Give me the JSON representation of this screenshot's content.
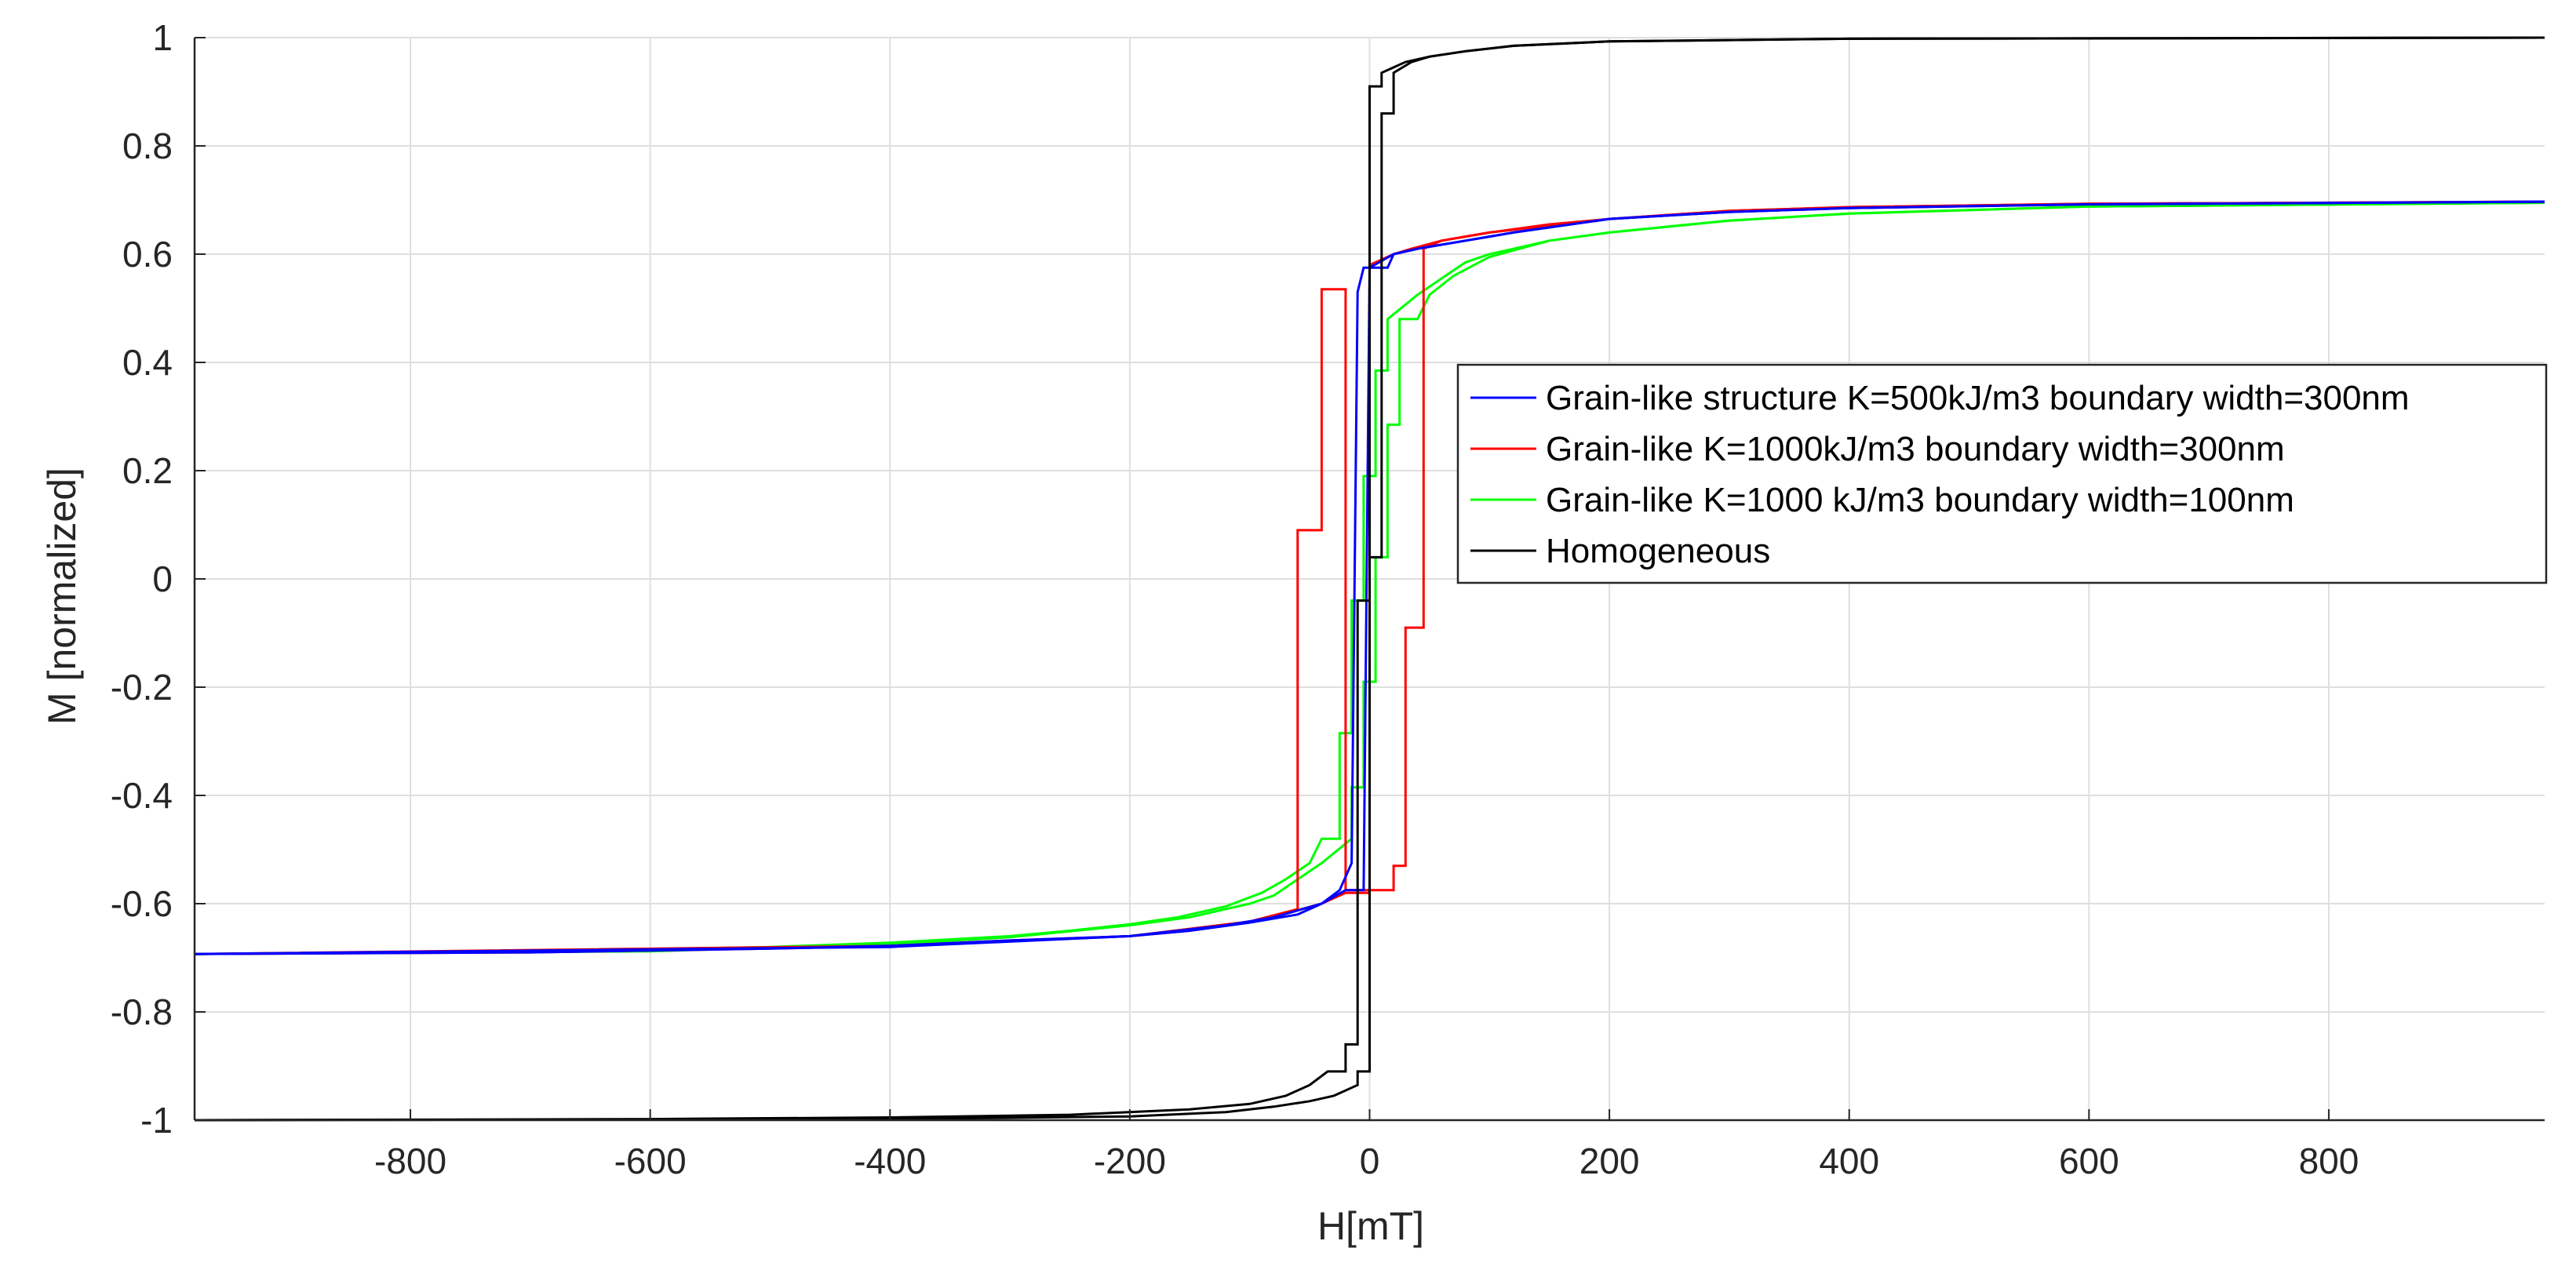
{
  "chart_data": {
    "type": "line",
    "title": "",
    "xlabel": "H[mT]",
    "ylabel": "M [normalized]",
    "xlim": [
      -980,
      980
    ],
    "ylim": [
      -1,
      1
    ],
    "xticks": [
      -800,
      -600,
      -400,
      -200,
      0,
      200,
      400,
      600,
      800
    ],
    "yticks": [
      -1,
      -0.8,
      -0.6,
      -0.4,
      -0.2,
      0,
      0.2,
      0.4,
      0.6,
      0.8,
      1
    ],
    "grid": true,
    "legend_position": "center-right",
    "series": [
      {
        "name": "Grain-like structure K=500kJ/m3 boundary width=300nm",
        "color": "#0000ff",
        "branches": [
          [
            [
              -980,
              -0.693
            ],
            [
              -700,
              -0.69
            ],
            [
              -500,
              -0.683
            ],
            [
              -400,
              -0.678
            ],
            [
              -300,
              -0.668
            ],
            [
              -200,
              -0.66
            ],
            [
              -150,
              -0.65
            ],
            [
              -100,
              -0.635
            ],
            [
              -60,
              -0.62
            ],
            [
              -40,
              -0.6
            ],
            [
              -20,
              -0.575
            ],
            [
              -5,
              -0.575
            ],
            [
              0,
              0.575
            ],
            [
              15,
              0.575
            ],
            [
              20,
              0.6
            ],
            [
              40,
              0.61
            ],
            [
              80,
              0.625
            ],
            [
              120,
              0.64
            ],
            [
              200,
              0.665
            ],
            [
              300,
              0.678
            ],
            [
              400,
              0.685
            ],
            [
              600,
              0.692
            ],
            [
              980,
              0.697
            ]
          ],
          [
            [
              980,
              0.697
            ],
            [
              600,
              0.692
            ],
            [
              400,
              0.685
            ],
            [
              300,
              0.678
            ],
            [
              200,
              0.665
            ],
            [
              120,
              0.64
            ],
            [
              80,
              0.625
            ],
            [
              40,
              0.61
            ],
            [
              20,
              0.6
            ],
            [
              0,
              0.575
            ],
            [
              -5,
              0.575
            ],
            [
              -10,
              0.53
            ],
            [
              -15,
              -0.525
            ],
            [
              -25,
              -0.575
            ],
            [
              -40,
              -0.6
            ],
            [
              -80,
              -0.625
            ],
            [
              -120,
              -0.64
            ],
            [
              -200,
              -0.66
            ],
            [
              -400,
              -0.68
            ],
            [
              -980,
              -0.693
            ]
          ]
        ]
      },
      {
        "name": "Grain-like K=1000kJ/m3 boundary width=300nm",
        "color": "#ff0000",
        "branches": [
          [
            [
              -980,
              -0.693
            ],
            [
              -700,
              -0.69
            ],
            [
              -500,
              -0.683
            ],
            [
              -400,
              -0.678
            ],
            [
              -300,
              -0.668
            ],
            [
              -200,
              -0.66
            ],
            [
              -150,
              -0.65
            ],
            [
              -100,
              -0.633
            ],
            [
              -60,
              -0.612
            ],
            [
              -40,
              -0.6
            ],
            [
              -20,
              -0.58
            ],
            [
              0,
              -0.58
            ],
            [
              0,
              0.58
            ],
            [
              20,
              0.6
            ],
            [
              35,
              0.61
            ],
            [
              60,
              0.625
            ],
            [
              100,
              0.64
            ],
            [
              150,
              0.655
            ],
            [
              200,
              0.665
            ],
            [
              300,
              0.68
            ],
            [
              400,
              0.687
            ],
            [
              600,
              0.693
            ],
            [
              980,
              0.697
            ]
          ],
          [
            [
              980,
              0.697
            ],
            [
              600,
              0.693
            ],
            [
              400,
              0.687
            ],
            [
              300,
              0.68
            ],
            [
              200,
              0.665
            ],
            [
              100,
              0.64
            ],
            [
              60,
              0.625
            ],
            [
              45,
              0.61
            ],
            [
              45,
              -0.09
            ],
            [
              30,
              -0.09
            ],
            [
              30,
              -0.53
            ],
            [
              20,
              -0.53
            ],
            [
              20,
              -0.575
            ],
            [
              -5,
              -0.575
            ],
            [
              -20,
              -0.575
            ],
            [
              -20,
              0.535
            ],
            [
              -40,
              0.535
            ],
            [
              -40,
              0.09
            ],
            [
              -60,
              0.09
            ],
            [
              -60,
              -0.61
            ],
            [
              -100,
              -0.633
            ],
            [
              -200,
              -0.66
            ],
            [
              -400,
              -0.678
            ],
            [
              -980,
              -0.693
            ]
          ]
        ]
      },
      {
        "name": "Grain-like K=1000 kJ/m3 boundary width=100nm",
        "color": "#00ff00",
        "branches": [
          [
            [
              -980,
              -0.693
            ],
            [
              -700,
              -0.688
            ],
            [
              -500,
              -0.68
            ],
            [
              -400,
              -0.672
            ],
            [
              -300,
              -0.66
            ],
            [
              -250,
              -0.65
            ],
            [
              -200,
              -0.638
            ],
            [
              -160,
              -0.625
            ],
            [
              -120,
              -0.605
            ],
            [
              -90,
              -0.58
            ],
            [
              -70,
              -0.555
            ],
            [
              -50,
              -0.525
            ],
            [
              -40,
              -0.48
            ],
            [
              -25,
              -0.48
            ],
            [
              -25,
              -0.285
            ],
            [
              -15,
              -0.285
            ],
            [
              -15,
              -0.04
            ],
            [
              -5,
              -0.04
            ],
            [
              -5,
              0.19
            ],
            [
              5,
              0.19
            ],
            [
              5,
              0.385
            ],
            [
              15,
              0.385
            ],
            [
              15,
              0.48
            ],
            [
              40,
              0.525
            ],
            [
              60,
              0.555
            ],
            [
              80,
              0.585
            ],
            [
              100,
              0.6
            ],
            [
              150,
              0.625
            ],
            [
              200,
              0.64
            ],
            [
              300,
              0.662
            ],
            [
              400,
              0.675
            ],
            [
              600,
              0.688
            ],
            [
              980,
              0.695
            ]
          ],
          [
            [
              980,
              0.695
            ],
            [
              600,
              0.688
            ],
            [
              400,
              0.675
            ],
            [
              300,
              0.662
            ],
            [
              200,
              0.64
            ],
            [
              150,
              0.625
            ],
            [
              100,
              0.595
            ],
            [
              70,
              0.56
            ],
            [
              50,
              0.525
            ],
            [
              40,
              0.48
            ],
            [
              25,
              0.48
            ],
            [
              25,
              0.285
            ],
            [
              15,
              0.285
            ],
            [
              15,
              0.04
            ],
            [
              5,
              0.04
            ],
            [
              5,
              -0.19
            ],
            [
              -5,
              -0.19
            ],
            [
              -5,
              -0.385
            ],
            [
              -15,
              -0.385
            ],
            [
              -15,
              -0.48
            ],
            [
              -40,
              -0.525
            ],
            [
              -60,
              -0.555
            ],
            [
              -80,
              -0.585
            ],
            [
              -100,
              -0.6
            ],
            [
              -150,
              -0.625
            ],
            [
              -200,
              -0.64
            ],
            [
              -300,
              -0.662
            ],
            [
              -400,
              -0.675
            ],
            [
              -600,
              -0.688
            ],
            [
              -980,
              -0.693
            ]
          ]
        ]
      },
      {
        "name": "Homogeneous",
        "color": "#000000",
        "branches": [
          [
            [
              -980,
              -1.0
            ],
            [
              -600,
              -0.998
            ],
            [
              -400,
              -0.995
            ],
            [
              -250,
              -0.99
            ],
            [
              -150,
              -0.98
            ],
            [
              -100,
              -0.97
            ],
            [
              -70,
              -0.955
            ],
            [
              -50,
              -0.935
            ],
            [
              -35,
              -0.91
            ],
            [
              -20,
              -0.91
            ],
            [
              -20,
              -0.86
            ],
            [
              -10,
              -0.86
            ],
            [
              -10,
              -0.04
            ],
            [
              0,
              -0.04
            ],
            [
              0,
              0.91
            ],
            [
              10,
              0.91
            ],
            [
              10,
              0.935
            ],
            [
              30,
              0.955
            ],
            [
              50,
              0.965
            ],
            [
              80,
              0.975
            ],
            [
              120,
              0.985
            ],
            [
              200,
              0.993
            ],
            [
              400,
              0.998
            ],
            [
              980,
              1.0
            ]
          ],
          [
            [
              980,
              1.0
            ],
            [
              400,
              0.998
            ],
            [
              200,
              0.993
            ],
            [
              120,
              0.985
            ],
            [
              80,
              0.975
            ],
            [
              50,
              0.965
            ],
            [
              35,
              0.955
            ],
            [
              20,
              0.935
            ],
            [
              20,
              0.86
            ],
            [
              10,
              0.86
            ],
            [
              10,
              0.04
            ],
            [
              0,
              0.04
            ],
            [
              0,
              -0.91
            ],
            [
              -10,
              -0.91
            ],
            [
              -10,
              -0.935
            ],
            [
              -30,
              -0.955
            ],
            [
              -50,
              -0.965
            ],
            [
              -80,
              -0.975
            ],
            [
              -120,
              -0.985
            ],
            [
              -200,
              -0.993
            ],
            [
              -400,
              -0.998
            ],
            [
              -980,
              -1.0
            ]
          ]
        ]
      }
    ]
  }
}
